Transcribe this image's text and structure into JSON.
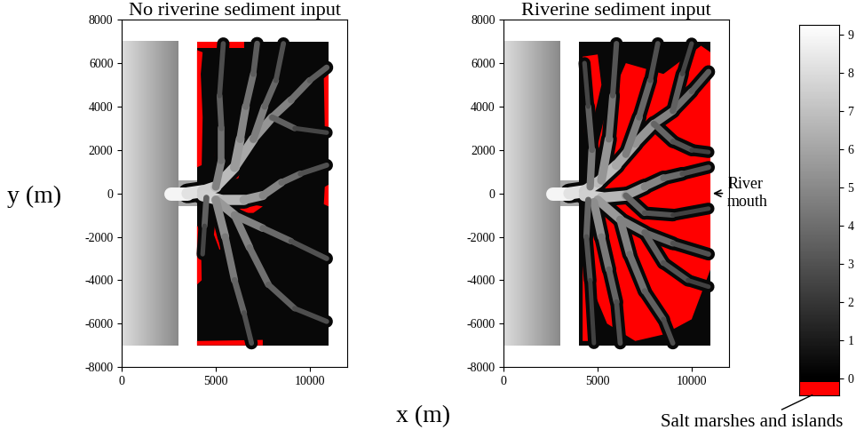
{
  "chart_data": {
    "type": "map",
    "xlabel": "x (m)",
    "ylabel": "y (m)",
    "xlim": [
      0,
      12000
    ],
    "ylim": [
      -8000,
      8000
    ],
    "xticks": [
      0,
      5000,
      10000
    ],
    "yticks": [
      -8000,
      -6000,
      -4000,
      -2000,
      0,
      2000,
      4000,
      6000,
      8000
    ],
    "ocean": {
      "x": [
        0,
        3000
      ],
      "y": [
        -7000,
        7000
      ],
      "depth": [
        8,
        5
      ]
    },
    "inlet": {
      "x": [
        3000,
        4000
      ],
      "y": [
        -600,
        600
      ],
      "depth": 6
    },
    "basin": {
      "x": [
        4000,
        11000
      ],
      "y": [
        -7000,
        7000
      ],
      "depth": 0.3
    },
    "colorbar": {
      "range": [
        -0.45,
        9.25
      ],
      "ticks": [
        0,
        1,
        2,
        3,
        4,
        5,
        6,
        7,
        8,
        9
      ],
      "marsh_range": [
        -0.45,
        -0.1
      ],
      "marsh_color": "#ff0000",
      "marsh_label": "Salt marshes and islands"
    },
    "panels": [
      {
        "title": "No riverine sediment input",
        "channels": [
          {
            "points": [
              [
                2600,
                0
              ],
              [
                3500,
                0
              ],
              [
                4300,
                100
              ],
              [
                5000,
                300
              ],
              [
                6000,
                1200
              ],
              [
                7000,
                2500
              ],
              [
                8000,
                3500
              ],
              [
                9000,
                4300
              ],
              [
                10000,
                5200
              ],
              [
                10900,
                5800
              ]
            ],
            "depth": [
              9.2,
              3
            ]
          },
          {
            "points": [
              [
                4300,
                -100
              ],
              [
                5200,
                -300
              ],
              [
                6500,
                -300
              ],
              [
                7500,
                -100
              ],
              [
                8500,
                500
              ],
              [
                9500,
                900
              ],
              [
                10900,
                1300
              ]
            ],
            "depth": [
              8,
              2.5
            ]
          },
          {
            "points": [
              [
                6000,
                1200
              ],
              [
                6300,
                2500
              ],
              [
                6600,
                4000
              ],
              [
                7000,
                5500
              ],
              [
                7200,
                6900
              ]
            ],
            "depth": [
              6,
              3
            ]
          },
          {
            "points": [
              [
                7000,
                2500
              ],
              [
                7600,
                4000
              ],
              [
                8200,
                5200
              ],
              [
                8600,
                6900
              ]
            ],
            "depth": [
              5,
              2.5
            ]
          },
          {
            "points": [
              [
                5000,
                300
              ],
              [
                5300,
                1500
              ],
              [
                5300,
                3000
              ],
              [
                5200,
                4500
              ],
              [
                5400,
                6900
              ]
            ],
            "depth": [
              5,
              2.5
            ]
          },
          {
            "points": [
              [
                5000,
                -300
              ],
              [
                6000,
                -1000
              ],
              [
                7500,
                -1600
              ],
              [
                9000,
                -2200
              ],
              [
                10900,
                -3000
              ]
            ],
            "depth": [
              6,
              2.5
            ]
          },
          {
            "points": [
              [
                5000,
                -300
              ],
              [
                5500,
                -2000
              ],
              [
                6000,
                -4000
              ],
              [
                6500,
                -5500
              ],
              [
                6900,
                -6900
              ]
            ],
            "depth": [
              5.5,
              2.5
            ]
          },
          {
            "points": [
              [
                6000,
                -1000
              ],
              [
                6800,
                -2500
              ],
              [
                7800,
                -4200
              ],
              [
                9200,
                -5300
              ],
              [
                10900,
                -5900
              ]
            ],
            "depth": [
              5,
              2.5
            ]
          },
          {
            "points": [
              [
                4500,
                -200
              ],
              [
                4400,
                -1500
              ],
              [
                4300,
                -2800
              ]
            ],
            "depth": [
              4,
              2
            ]
          },
          {
            "points": [
              [
                8000,
                3500
              ],
              [
                9200,
                3000
              ],
              [
                10900,
                2800
              ]
            ],
            "depth": [
              4,
              2
            ]
          }
        ],
        "marshes": [
          [
            [
              4000,
              1200
            ],
            [
              4250,
              1300
            ],
            [
              4300,
              3500
            ],
            [
              4200,
              5500
            ],
            [
              4300,
              6500
            ],
            [
              4000,
              6600
            ]
          ],
          [
            [
              4900,
              1700
            ],
            [
              5300,
              1800
            ],
            [
              5600,
              3000
            ],
            [
              5500,
              4500
            ],
            [
              5100,
              4600
            ],
            [
              5200,
              3200
            ]
          ],
          [
            [
              5300,
              500
            ],
            [
              6200,
              700
            ],
            [
              6300,
              1000
            ],
            [
              5600,
              1050
            ],
            [
              5200,
              900
            ]
          ],
          [
            [
              5200,
              -500
            ],
            [
              6500,
              -450
            ],
            [
              7500,
              -600
            ],
            [
              7000,
              -900
            ],
            [
              5800,
              -900
            ]
          ],
          [
            [
              5000,
              -1100
            ],
            [
              5600,
              -1200
            ],
            [
              5700,
              -2300
            ],
            [
              5200,
              -2600
            ],
            [
              4900,
              -1900
            ]
          ],
          [
            [
              4000,
              6700
            ],
            [
              6500,
              6700
            ],
            [
              6500,
              7000
            ],
            [
              4000,
              7000
            ]
          ],
          [
            [
              4000,
              -7000
            ],
            [
              7500,
              -7000
            ],
            [
              7500,
              -6750
            ],
            [
              4000,
              -6800
            ]
          ],
          [
            [
              10800,
              3000
            ],
            [
              11000,
              3000
            ],
            [
              11000,
              5500
            ],
            [
              10750,
              5300
            ]
          ],
          [
            [
              10750,
              -500
            ],
            [
              11000,
              -600
            ],
            [
              11000,
              400
            ],
            [
              10800,
              300
            ]
          ],
          [
            [
              4000,
              -1500
            ],
            [
              4200,
              -1600
            ],
            [
              4250,
              -4000
            ],
            [
              4000,
              -4200
            ]
          ]
        ]
      },
      {
        "title": "Riverine sediment input",
        "annotation": {
          "text": "River\nmouth",
          "point": [
            11000,
            0
          ]
        },
        "channels": [
          {
            "points": [
              [
                2600,
                0
              ],
              [
                3500,
                0
              ],
              [
                4300,
                100
              ],
              [
                5000,
                500
              ],
              [
                6000,
                1300
              ],
              [
                7000,
                2300
              ],
              [
                8000,
                3200
              ],
              [
                9000,
                3800
              ],
              [
                10000,
                4700
              ],
              [
                10900,
                5600
              ]
            ],
            "depth": [
              9.2,
              3
            ]
          },
          {
            "points": [
              [
                4300,
                -100
              ],
              [
                5200,
                -200
              ],
              [
                6500,
                -100
              ],
              [
                7500,
                300
              ],
              [
                8500,
                700
              ],
              [
                9500,
                900
              ],
              [
                10900,
                1200
              ]
            ],
            "depth": [
              8,
              2.5
            ]
          },
          {
            "points": [
              [
                5200,
                600
              ],
              [
                5600,
                2500
              ],
              [
                5800,
                4500
              ],
              [
                6000,
                6900
              ]
            ],
            "depth": [
              6,
              2.5
            ]
          },
          {
            "points": [
              [
                6500,
                1800
              ],
              [
                7200,
                3500
              ],
              [
                7800,
                5200
              ],
              [
                8200,
                6900
              ]
            ],
            "depth": [
              5,
              2.5
            ]
          },
          {
            "points": [
              [
                4600,
                300
              ],
              [
                4700,
                2000
              ],
              [
                4500,
                4000
              ],
              [
                4300,
                6000
              ]
            ],
            "depth": [
              5,
              2
            ]
          },
          {
            "points": [
              [
                8000,
                3200
              ],
              [
                9000,
                2400
              ],
              [
                10000,
                2000
              ],
              [
                10900,
                1900
              ]
            ],
            "depth": [
              4,
              2
            ]
          },
          {
            "points": [
              [
                9000,
                3800
              ],
              [
                9500,
                5500
              ],
              [
                10000,
                6900
              ]
            ],
            "depth": [
              4,
              2
            ]
          },
          {
            "points": [
              [
                5000,
                -300
              ],
              [
                6200,
                -1200
              ],
              [
                7500,
                -1800
              ],
              [
                9000,
                -2300
              ],
              [
                10900,
                -2800
              ]
            ],
            "depth": [
              6,
              2.5
            ]
          },
          {
            "points": [
              [
                7500,
                -1800
              ],
              [
                8500,
                -3200
              ],
              [
                9800,
                -4000
              ],
              [
                10900,
                -4300
              ]
            ],
            "depth": [
              4,
              2
            ]
          },
          {
            "points": [
              [
                4800,
                -400
              ],
              [
                5200,
                -2000
              ],
              [
                5600,
                -3500
              ],
              [
                6000,
                -5000
              ],
              [
                6200,
                -6900
              ]
            ],
            "depth": [
              5.5,
              2.5
            ]
          },
          {
            "points": [
              [
                6200,
                -1200
              ],
              [
                6700,
                -2800
              ],
              [
                7500,
                -4500
              ],
              [
                8500,
                -5800
              ],
              [
                9000,
                -6900
              ]
            ],
            "depth": [
              5,
              2.5
            ]
          },
          {
            "points": [
              [
                4500,
                -300
              ],
              [
                4400,
                -2000
              ],
              [
                4600,
                -4000
              ],
              [
                4800,
                -6900
              ]
            ],
            "depth": [
              4,
              2
            ]
          },
          {
            "points": [
              [
                6500,
                -100
              ],
              [
                7500,
                -900
              ],
              [
                9000,
                -1000
              ],
              [
                10900,
                -700
              ]
            ],
            "depth": [
              4,
              2
            ]
          }
        ],
        "marshes": [
          [
            [
              4800,
              1500
            ],
            [
              5500,
              4000
            ],
            [
              6500,
              6000
            ],
            [
              8500,
              5500
            ],
            [
              10500,
              6800
            ],
            [
              11000,
              6500
            ],
            [
              11000,
              -3500
            ],
            [
              10000,
              -5800
            ],
            [
              8500,
              -6500
            ],
            [
              7000,
              -6800
            ],
            [
              5500,
              -6000
            ],
            [
              4300,
              -3500
            ],
            [
              4600,
              -1000
            ]
          ],
          [
            [
              4200,
              6300
            ],
            [
              5000,
              6400
            ],
            [
              5200,
              5000
            ],
            [
              4800,
              3500
            ],
            [
              4300,
              2500
            ],
            [
              4200,
              4500
            ]
          ],
          [
            [
              4200,
              -3000
            ],
            [
              4700,
              -4500
            ],
            [
              4500,
              -6800
            ],
            [
              4200,
              -6800
            ]
          ]
        ]
      }
    ]
  }
}
